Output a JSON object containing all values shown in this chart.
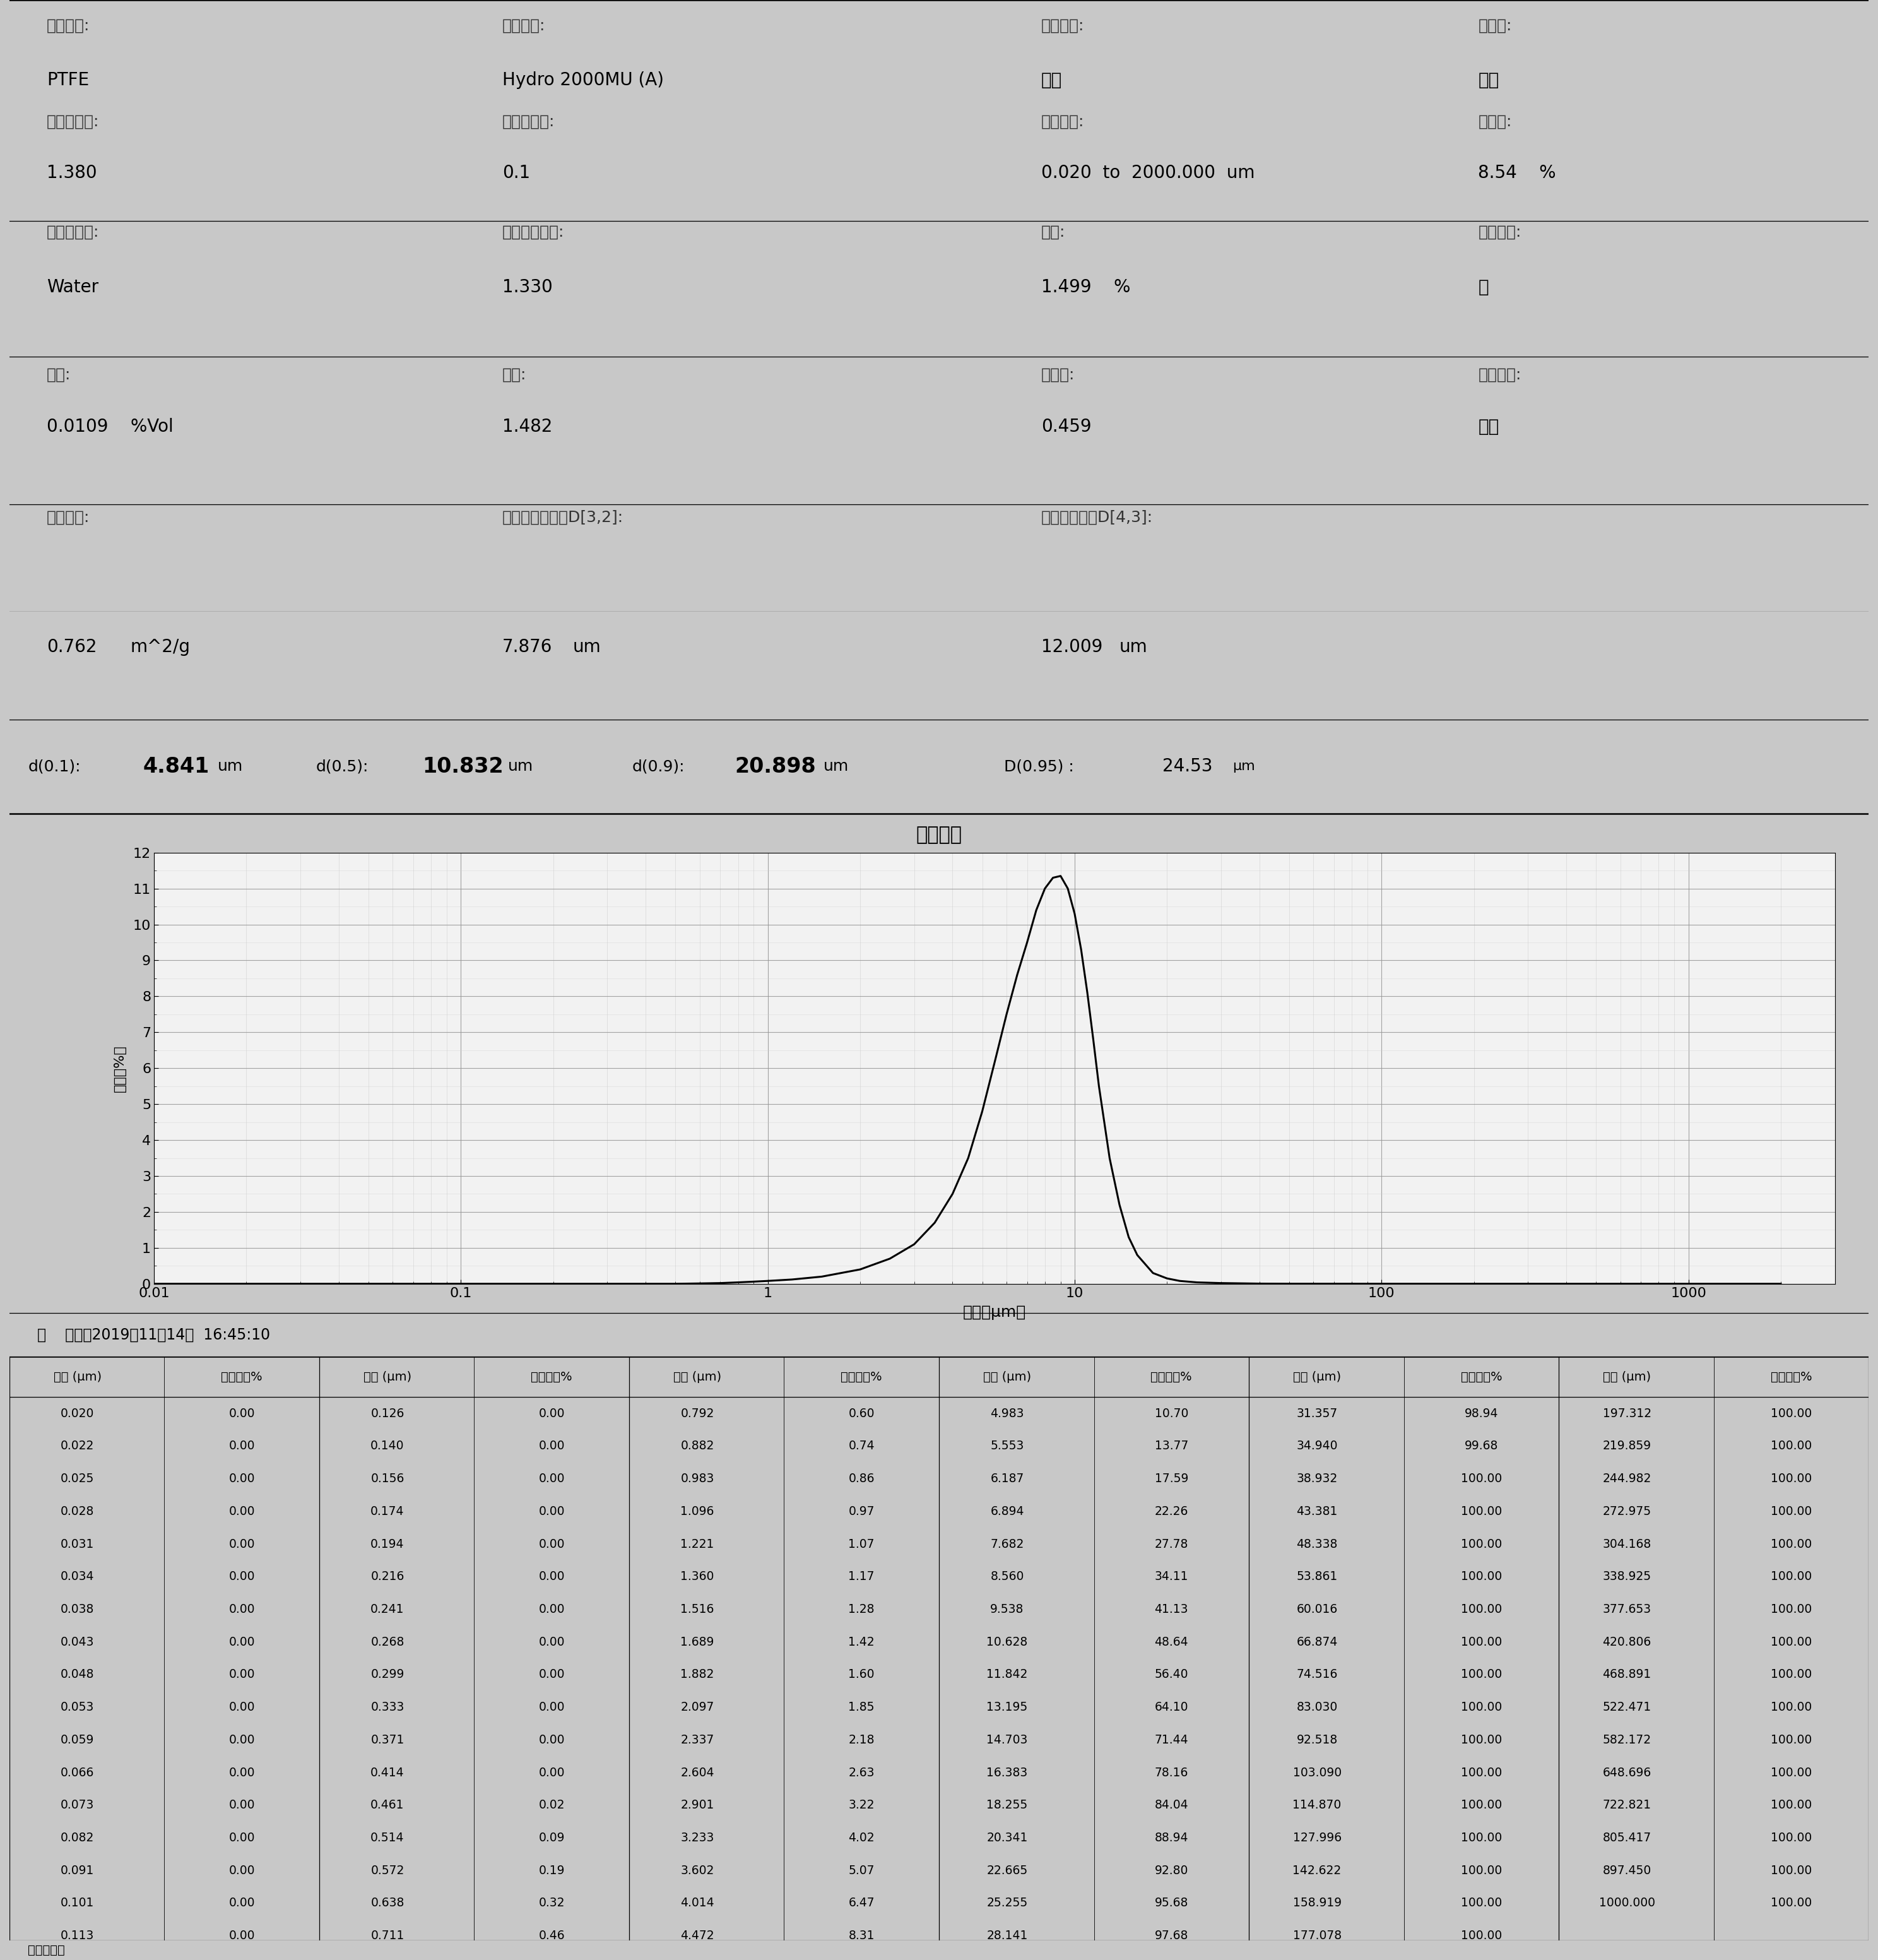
{
  "title_header": "平均",
  "particle_name_label": "颗粒名称:",
  "particle_name": "PTFE",
  "sampler_label": "进样器名:",
  "sampler": "Hydro 2000MU (A)",
  "analysis_mode_label": "分析模式:",
  "analysis_mode": "通用",
  "sensitivity_label": "灵敏度:",
  "sensitivity": "正常",
  "refraction_label": "颗粒折射率:",
  "refraction": "1.380",
  "absorption_label": "颗粒吸收率:",
  "absorption": "0.1",
  "size_range_label": "粒径范围:",
  "size_range": "0.020  to  2000.000  um",
  "obscuration_label": "遮光度:",
  "obscuration": "8.54    %",
  "dispersant_name_label": "分散剂名称:",
  "dispersant_name": "Water",
  "dispersant_refraction_label": "分散剂折射率:",
  "dispersant_refraction": "1.330",
  "residual_label": "残差:",
  "residual": "1.499    %",
  "result_model_label": "结果模拟:",
  "result_model": "关",
  "concentration_label": "浓度:",
  "concentration_val": "0.0109    %Vol",
  "span_label": "径距:",
  "span_val": "1.482",
  "uniformity_label": "一致性:",
  "uniformity_val": "0.459",
  "result_type_label": "结果类别:",
  "result_type_val": "体积",
  "surface_area_label": "比表面积:",
  "surface_area_val": "0.762",
  "surface_area_unit": "m^2/g",
  "d32_label": "表面积平均粒径D[3,2]:",
  "d32_val": "7.876",
  "d32_unit": "um",
  "d43_label": "体积平均粒径D[4,3]:",
  "d43_val": "12.009",
  "d43_unit": "um",
  "d01_label": "d(0.1):",
  "d01_val": "4.841",
  "d05_label": "d(0.5):",
  "d05_val": "10.832",
  "d09_label": "d(0.9):",
  "d09_val": "20.898",
  "d095_label": "D(0.95) :",
  "d095_val": "24.53",
  "chart_title": "粒度分布",
  "xlabel": "粒度（μm）",
  "ylabel_top": "体积",
  "ylabel_bot": "（%）",
  "date_label": "－    平均，2019年11月14日  16:45:10",
  "bg_color": "#c8c8c8",
  "panel_color": "#dcdcdc",
  "chart_outer_color": "#c8c8c8",
  "chart_inner_color": "#e8e8f0",
  "table_header1": "粒度 (μm)",
  "table_header2": "体积不足%",
  "bottom_label": "操作说明：",
  "table_data": {
    "col1": {
      "size": [
        0.02,
        0.022,
        0.025,
        0.028,
        0.031,
        0.034,
        0.038,
        0.043,
        0.048,
        0.053,
        0.059,
        0.066,
        0.073,
        0.082,
        0.091,
        0.101,
        0.113
      ],
      "vol": [
        0.0,
        0.0,
        0.0,
        0.0,
        0.0,
        0.0,
        0.0,
        0.0,
        0.0,
        0.0,
        0.0,
        0.0,
        0.0,
        0.0,
        0.0,
        0.0,
        0.0
      ]
    },
    "col2": {
      "size": [
        0.126,
        0.14,
        0.156,
        0.174,
        0.194,
        0.216,
        0.241,
        0.268,
        0.299,
        0.333,
        0.371,
        0.414,
        0.461,
        0.514,
        0.572,
        0.638,
        0.711
      ],
      "vol": [
        0.0,
        0.0,
        0.0,
        0.0,
        0.0,
        0.0,
        0.0,
        0.0,
        0.0,
        0.0,
        0.0,
        0.0,
        0.02,
        0.09,
        0.19,
        0.32,
        0.46
      ]
    },
    "col3": {
      "size": [
        0.792,
        0.882,
        0.983,
        1.096,
        1.221,
        1.36,
        1.516,
        1.689,
        1.882,
        2.097,
        2.337,
        2.604,
        2.901,
        3.233,
        3.602,
        4.014,
        4.472
      ],
      "vol": [
        0.6,
        0.74,
        0.86,
        0.97,
        1.07,
        1.17,
        1.28,
        1.42,
        1.6,
        1.85,
        2.18,
        2.63,
        3.22,
        4.02,
        5.07,
        6.47,
        8.31
      ]
    },
    "col4": {
      "size": [
        4.983,
        5.553,
        6.187,
        6.894,
        7.682,
        8.56,
        9.538,
        10.628,
        11.842,
        13.195,
        14.703,
        16.383,
        18.255,
        20.341,
        22.665,
        25.255,
        28.141
      ],
      "vol": [
        10.7,
        13.77,
        17.59,
        22.26,
        27.78,
        34.11,
        41.13,
        48.64,
        56.4,
        64.1,
        71.44,
        78.16,
        84.04,
        88.94,
        92.8,
        95.68,
        97.68
      ]
    },
    "col5": {
      "size": [
        31.357,
        34.94,
        38.932,
        43.381,
        48.338,
        53.861,
        60.016,
        66.874,
        74.516,
        83.03,
        92.518,
        103.09,
        114.87,
        127.996,
        142.622,
        158.919,
        177.078
      ],
      "vol": [
        98.94,
        99.68,
        100.0,
        100.0,
        100.0,
        100.0,
        100.0,
        100.0,
        100.0,
        100.0,
        100.0,
        100.0,
        100.0,
        100.0,
        100.0,
        100.0,
        100.0
      ]
    },
    "col6": {
      "size": [
        197.312,
        219.859,
        244.982,
        272.975,
        304.168,
        338.925,
        377.653,
        420.806,
        468.891,
        522.471,
        582.172,
        648.696,
        722.821,
        805.417,
        897.45,
        1000.0
      ],
      "vol": [
        100.0,
        100.0,
        100.0,
        100.0,
        100.0,
        100.0,
        100.0,
        100.0,
        100.0,
        100.0,
        100.0,
        100.0,
        100.0,
        100.0,
        100.0,
        100.0
      ]
    }
  },
  "curve_x": [
    0.01,
    0.05,
    0.1,
    0.2,
    0.3,
    0.4,
    0.5,
    0.6,
    0.7,
    0.8,
    0.9,
    1.0,
    1.2,
    1.5,
    2.0,
    2.5,
    3.0,
    3.5,
    4.0,
    4.5,
    5.0,
    5.5,
    6.0,
    6.5,
    7.0,
    7.5,
    8.0,
    8.5,
    9.0,
    9.5,
    10.0,
    10.5,
    11.0,
    11.5,
    12.0,
    13.0,
    14.0,
    15.0,
    16.0,
    18.0,
    20.0,
    22.0,
    25.0,
    30.0,
    40.0,
    50.0,
    100.0,
    500.0,
    2000.0
  ],
  "curve_y": [
    0.0,
    0.0,
    0.0,
    0.0,
    0.0,
    0.0,
    0.0,
    0.01,
    0.02,
    0.04,
    0.06,
    0.08,
    0.12,
    0.2,
    0.4,
    0.7,
    1.1,
    1.7,
    2.5,
    3.5,
    4.8,
    6.2,
    7.5,
    8.6,
    9.5,
    10.4,
    11.0,
    11.3,
    11.35,
    11.0,
    10.3,
    9.3,
    8.1,
    6.8,
    5.5,
    3.5,
    2.2,
    1.3,
    0.8,
    0.3,
    0.15,
    0.08,
    0.04,
    0.02,
    0.005,
    0.002,
    0.001,
    0.0,
    0.0
  ]
}
